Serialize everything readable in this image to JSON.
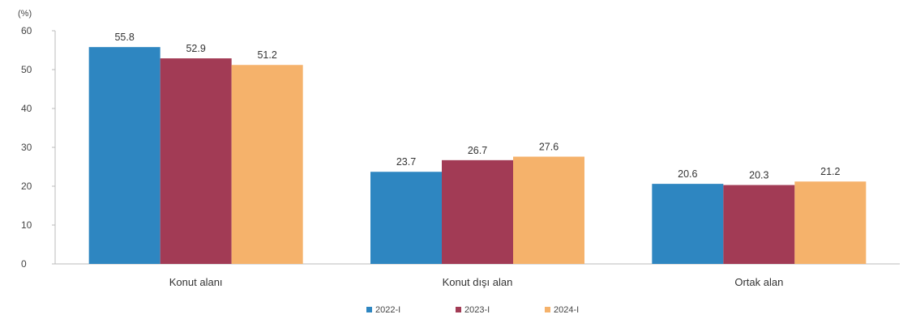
{
  "chart_data": {
    "type": "bar",
    "unit_label": "(%)",
    "categories": [
      "Konut alanı",
      "Konut dışı alan",
      "Ortak alan"
    ],
    "series": [
      {
        "name": "2022-I",
        "values": [
          55.8,
          23.7,
          20.6
        ]
      },
      {
        "name": "2023-I",
        "values": [
          52.9,
          26.7,
          20.3
        ]
      },
      {
        "name": "2024-I",
        "values": [
          51.2,
          27.6,
          21.2
        ]
      }
    ],
    "data_labels": [
      [
        "55.8",
        "23.7",
        "20.6"
      ],
      [
        "52.9",
        "26.7",
        "20.3"
      ],
      [
        "51.2",
        "27.6",
        "21.2"
      ]
    ],
    "ylim": [
      0,
      60
    ],
    "yticks": [
      0,
      10,
      20,
      30,
      40,
      50,
      60
    ],
    "colors": [
      "#2e86c1",
      "#a23b55",
      "#f5b26b"
    ],
    "grid": false,
    "legend_position": "bottom-center"
  }
}
